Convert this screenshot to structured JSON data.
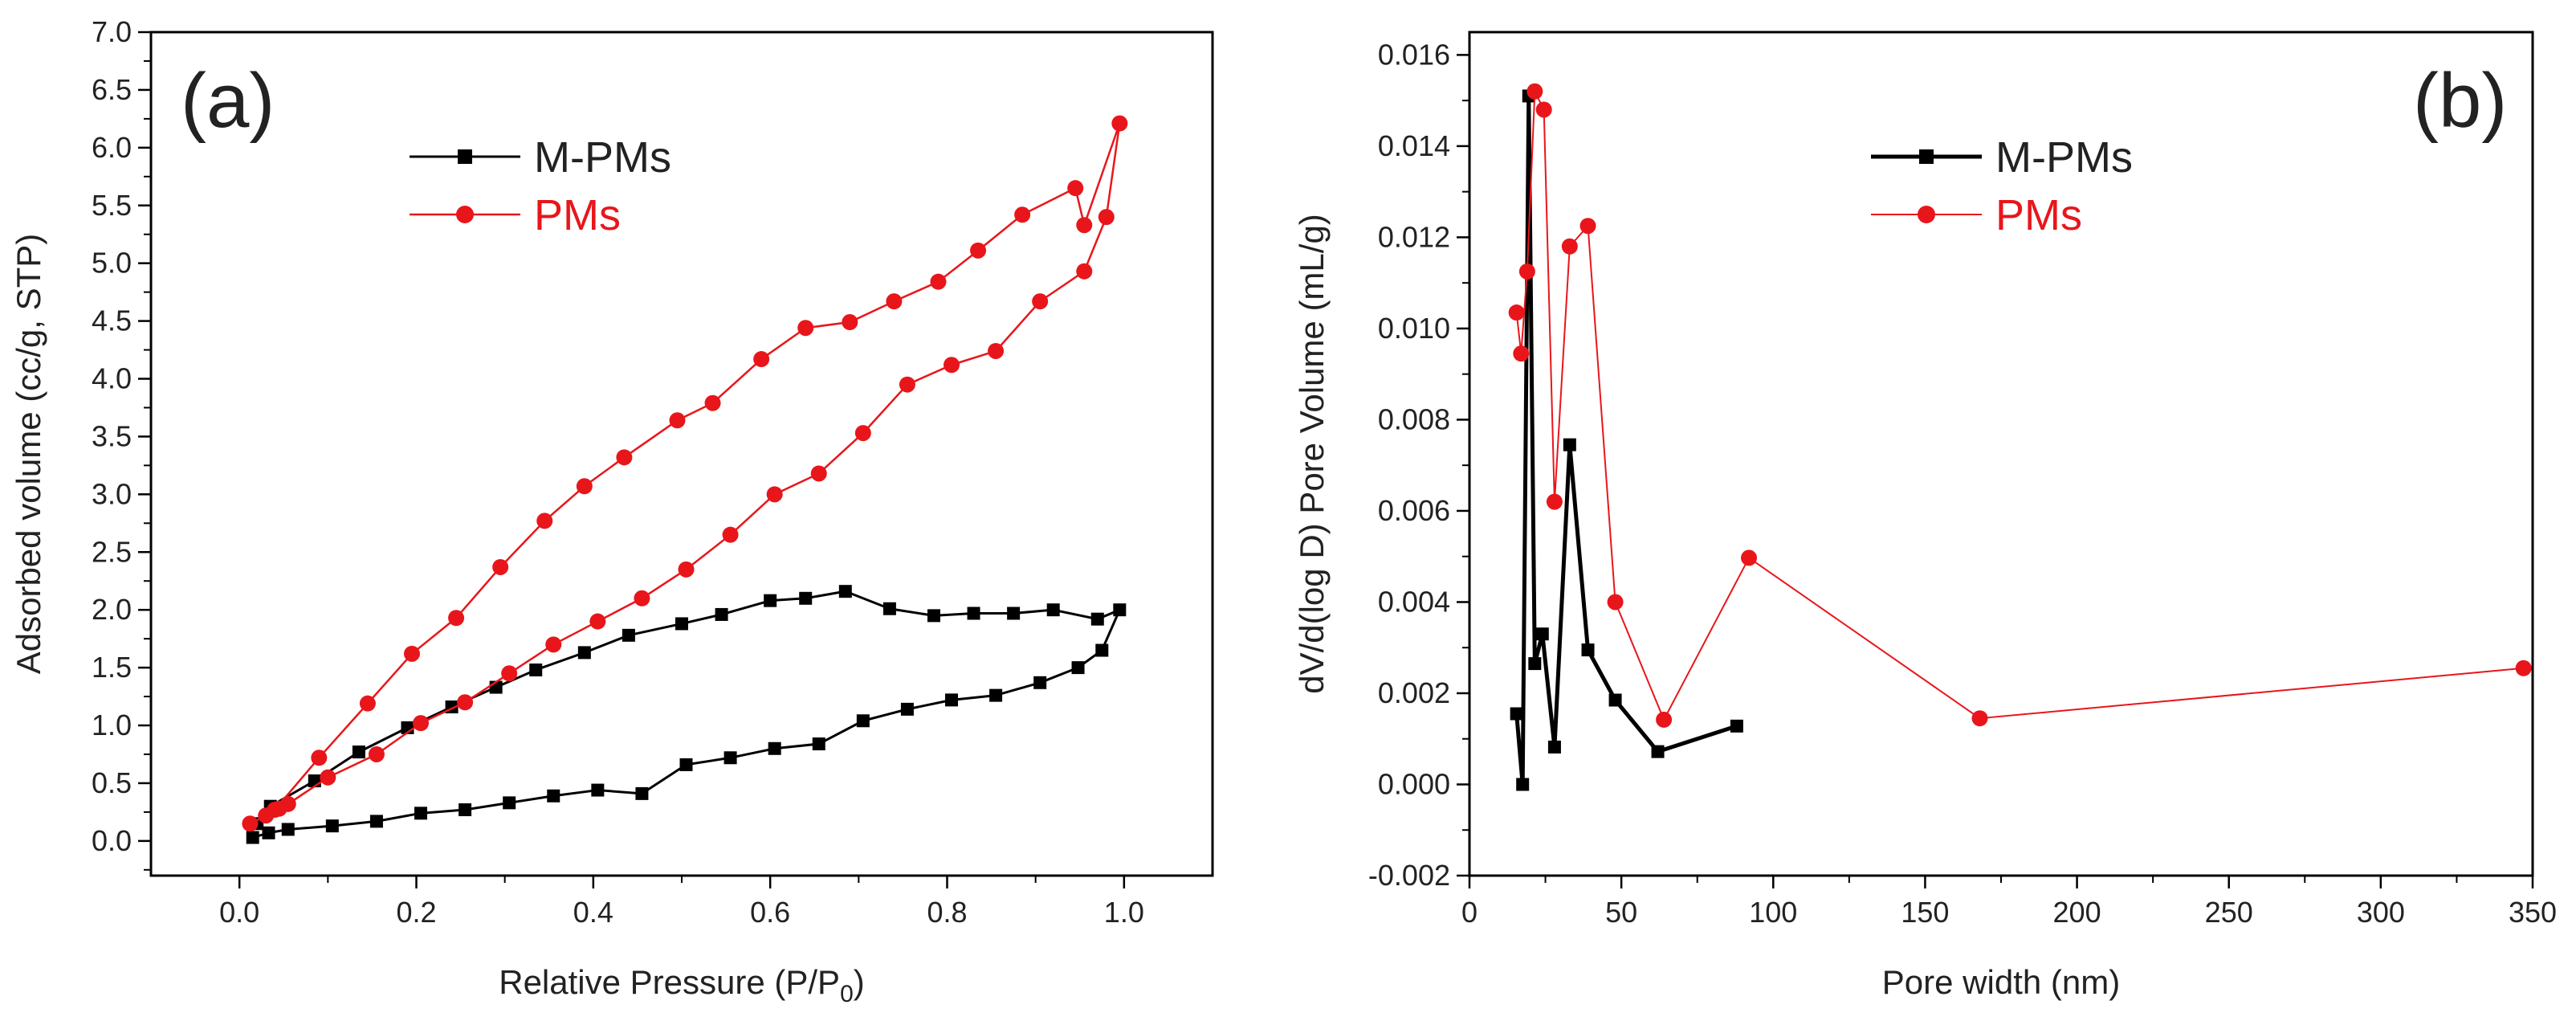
{
  "chart_data": [
    {
      "type": "line",
      "panel_label": "(a)",
      "xlabel_main": "Relative  Pressure (P/P",
      "xlabel_sub": "0",
      "xlabel_end": ")",
      "ylabel": "Adsorbed volume (cc/g, STP)",
      "xlim": [
        -0.1,
        1.1
      ],
      "ylim": [
        -0.3,
        7.0
      ],
      "x_ticks": [
        0.0,
        0.2,
        0.4,
        0.6,
        0.8,
        1.0
      ],
      "x_tick_labels": [
        "0.0",
        "0.2",
        "0.4",
        "0.6",
        "0.8",
        "1.0"
      ],
      "y_ticks": [
        0.0,
        0.5,
        1.0,
        1.5,
        2.0,
        2.5,
        3.0,
        3.5,
        4.0,
        4.5,
        5.0,
        5.5,
        6.0,
        6.5,
        7.0
      ],
      "y_tick_labels": [
        "0.0",
        "0.5",
        "1.0",
        "1.5",
        "2.0",
        "2.5",
        "3.0",
        "3.5",
        "4.0",
        "4.5",
        "5.0",
        "5.5",
        "6.0",
        "6.5",
        "7.0"
      ],
      "legend_position": "top-center",
      "series": [
        {
          "name": "M-PMs",
          "color": "#000000",
          "marker": "square",
          "points": [
            [
              0.015,
              0.03
            ],
            [
              0.033,
              0.07
            ],
            [
              0.055,
              0.1
            ],
            [
              0.105,
              0.13
            ],
            [
              0.155,
              0.17
            ],
            [
              0.205,
              0.24
            ],
            [
              0.255,
              0.27
            ],
            [
              0.305,
              0.33
            ],
            [
              0.355,
              0.39
            ],
            [
              0.405,
              0.44
            ],
            [
              0.455,
              0.41
            ],
            [
              0.505,
              0.66
            ],
            [
              0.555,
              0.72
            ],
            [
              0.605,
              0.8
            ],
            [
              0.655,
              0.84
            ],
            [
              0.705,
              1.04
            ],
            [
              0.755,
              1.14
            ],
            [
              0.805,
              1.22
            ],
            [
              0.855,
              1.26
            ],
            [
              0.905,
              1.37
            ],
            [
              0.948,
              1.5
            ],
            [
              0.975,
              1.65
            ],
            [
              0.995,
              2.0
            ],
            [
              0.97,
              1.92
            ],
            [
              0.92,
              2.0
            ],
            [
              0.875,
              1.97
            ],
            [
              0.83,
              1.97
            ],
            [
              0.785,
              1.95
            ],
            [
              0.735,
              2.01
            ],
            [
              0.685,
              2.16
            ],
            [
              0.64,
              2.1
            ],
            [
              0.6,
              2.08
            ],
            [
              0.545,
              1.96
            ],
            [
              0.5,
              1.88
            ],
            [
              0.44,
              1.78
            ],
            [
              0.39,
              1.63
            ],
            [
              0.335,
              1.48
            ],
            [
              0.29,
              1.33
            ],
            [
              0.24,
              1.16
            ],
            [
              0.19,
              0.98
            ],
            [
              0.135,
              0.77
            ],
            [
              0.085,
              0.52
            ],
            [
              0.035,
              0.3
            ],
            [
              0.02,
              0.15
            ]
          ]
        },
        {
          "name": "PMs",
          "color": "#e8161b",
          "marker": "circle",
          "points": [
            [
              0.012,
              0.15
            ],
            [
              0.03,
              0.22
            ],
            [
              0.045,
              0.28
            ],
            [
              0.055,
              0.32
            ],
            [
              0.1,
              0.55
            ],
            [
              0.155,
              0.75
            ],
            [
              0.205,
              1.02
            ],
            [
              0.255,
              1.2
            ],
            [
              0.305,
              1.45
            ],
            [
              0.355,
              1.7
            ],
            [
              0.405,
              1.9
            ],
            [
              0.455,
              2.1
            ],
            [
              0.505,
              2.35
            ],
            [
              0.555,
              2.65
            ],
            [
              0.605,
              3.0
            ],
            [
              0.655,
              3.18
            ],
            [
              0.705,
              3.53
            ],
            [
              0.755,
              3.95
            ],
            [
              0.805,
              4.12
            ],
            [
              0.855,
              4.24
            ],
            [
              0.905,
              4.67
            ],
            [
              0.955,
              4.93
            ],
            [
              0.98,
              5.4
            ],
            [
              0.995,
              6.21
            ],
            [
              0.955,
              5.33
            ],
            [
              0.945,
              5.65
            ],
            [
              0.885,
              5.42
            ],
            [
              0.835,
              5.11
            ],
            [
              0.79,
              4.84
            ],
            [
              0.74,
              4.67
            ],
            [
              0.69,
              4.49
            ],
            [
              0.64,
              4.44
            ],
            [
              0.59,
              4.17
            ],
            [
              0.535,
              3.79
            ],
            [
              0.495,
              3.64
            ],
            [
              0.435,
              3.32
            ],
            [
              0.39,
              3.07
            ],
            [
              0.345,
              2.77
            ],
            [
              0.295,
              2.37
            ],
            [
              0.245,
              1.93
            ],
            [
              0.195,
              1.62
            ],
            [
              0.145,
              1.19
            ],
            [
              0.09,
              0.72
            ],
            [
              0.04,
              0.27
            ]
          ]
        }
      ]
    },
    {
      "type": "line",
      "panel_label": "(b)",
      "xlabel": "Pore width (nm)",
      "ylabel": "dV/d(log D) Pore Volume (mL/g)",
      "xlim": [
        0,
        350
      ],
      "ylim": [
        -0.002,
        0.0165
      ],
      "x_ticks": [
        0,
        50,
        100,
        150,
        200,
        250,
        300,
        350
      ],
      "x_tick_labels": [
        "0",
        "50",
        "100",
        "150",
        "200",
        "250",
        "300",
        "350"
      ],
      "y_ticks": [
        -0.002,
        0.0,
        0.002,
        0.004,
        0.006,
        0.008,
        0.01,
        0.012,
        0.014,
        0.016
      ],
      "y_tick_labels": [
        "-0.002",
        "0.000",
        "0.002",
        "0.004",
        "0.006",
        "0.008",
        "0.010",
        "0.012",
        "0.014",
        "0.016"
      ],
      "legend_position": "top-center",
      "series": [
        {
          "name": "M-PMs",
          "color": "#000000",
          "marker": "square",
          "points": [
            [
              15.5,
              0.00155
            ],
            [
              17.5,
              0.0
            ],
            [
              19.5,
              0.0151
            ],
            [
              21.5,
              0.00265
            ],
            [
              24,
              0.0033
            ],
            [
              28,
              0.00082
            ],
            [
              33,
              0.00745
            ],
            [
              39,
              0.00295
            ],
            [
              48,
              0.00185
            ],
            [
              62,
              0.00072
            ],
            [
              88,
              0.00128
            ]
          ]
        },
        {
          "name": "PMs",
          "color": "#e8161b",
          "marker": "circle",
          "points": [
            [
              15.5,
              0.01035
            ],
            [
              17,
              0.00945
            ],
            [
              19,
              0.01125
            ],
            [
              21.5,
              0.0152
            ],
            [
              24.5,
              0.0148
            ],
            [
              28,
              0.0062
            ],
            [
              33,
              0.0118
            ],
            [
              39,
              0.01225
            ],
            [
              48,
              0.004
            ],
            [
              64,
              0.00142
            ],
            [
              92,
              0.00497
            ],
            [
              168,
              0.00145
            ],
            [
              347,
              0.00255
            ]
          ]
        }
      ]
    }
  ]
}
